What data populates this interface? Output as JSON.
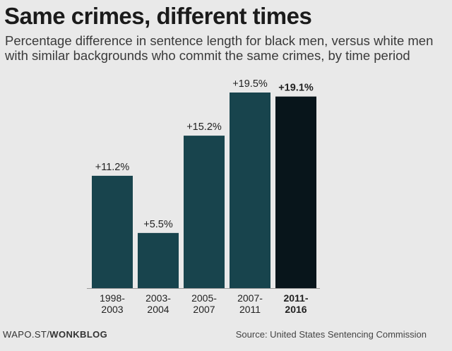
{
  "chart_data": {
    "type": "bar",
    "title": "Same crimes, different times",
    "subtitle": "Percentage difference in sentence length for black men, versus white men with similar backgrounds who commit the same crimes, by time period",
    "categories": [
      [
        "1998-",
        "2003"
      ],
      [
        "2003-",
        "2004"
      ],
      [
        "2005-",
        "2007"
      ],
      [
        "2007-",
        "2011"
      ],
      [
        "2011-",
        "2016"
      ]
    ],
    "values": [
      11.2,
      5.5,
      15.2,
      19.5,
      19.1
    ],
    "value_labels": [
      "+11.2%",
      "+5.5%",
      "+15.2%",
      "+19.5%",
      "+19.1%"
    ],
    "highlight_index": 4,
    "ylim": [
      0,
      20
    ],
    "grid": false,
    "legend": "none",
    "colors": {
      "bar": "#18444d",
      "highlight": "#08151b",
      "baseline": "#9a9a9a"
    }
  },
  "footer": {
    "source_left_prefix": "WAPO.ST/",
    "source_left_bold": "WONKBLOG",
    "source_right": "Source: United States Sentencing Commission"
  }
}
